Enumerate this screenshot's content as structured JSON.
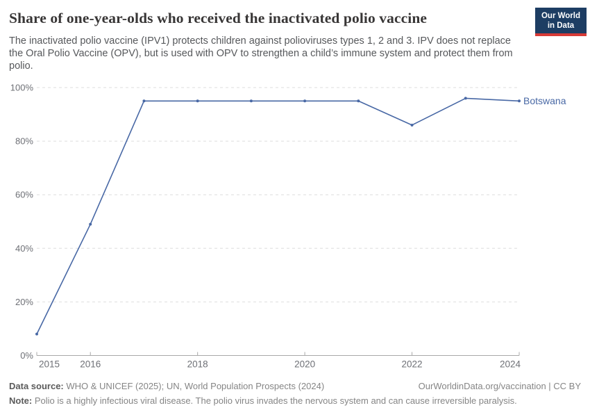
{
  "header": {
    "title": "Share of one-year-olds who received the inactivated polio vaccine",
    "subtitle": "The inactivated polio vaccine (IPV1) protects children against polioviruses types 1, 2 and 3. IPV does not replace the Oral Polio Vaccine (OPV), but is used with OPV to strengthen a child’s immune system and protect them from polio.",
    "logo": {
      "line1": "Our World",
      "line2": "in Data"
    }
  },
  "chart_data": {
    "type": "line",
    "title": "Share of one-year-olds who received the inactivated polio vaccine",
    "x": [
      2015,
      2016,
      2017,
      2018,
      2019,
      2020,
      2021,
      2022,
      2023,
      2024
    ],
    "series": [
      {
        "name": "Botswana",
        "color": "#4868a5",
        "values": [
          8,
          49,
          95,
          95,
          95,
          95,
          95,
          86,
          96,
          95
        ]
      }
    ],
    "xlim": [
      2015,
      2024
    ],
    "ylim": [
      0,
      100
    ],
    "x_tick_labels": [
      2015,
      2016,
      2018,
      2020,
      2022,
      2024
    ],
    "y_ticks": [
      0,
      20,
      40,
      60,
      80,
      100
    ],
    "y_tick_suffix": "%",
    "grid": "horizontal-dashed",
    "legend_position": "end-of-line-label"
  },
  "footer": {
    "source_label": "Data source:",
    "source_text": " WHO & UNICEF (2025); UN, World Population Prospects (2024)",
    "rights": "OurWorldinData.org/vaccination | CC BY",
    "note_label": "Note:",
    "note_text": " Polio is a highly infectious viral disease. The polio virus invades the nervous system and can cause irreversible paralysis."
  },
  "colors": {
    "line": "#4868a5",
    "title": "#383636",
    "subtitle": "#56585b",
    "grid": "#dedede",
    "axis": "#a8a8a8",
    "tick_label": "#6e7076",
    "logo_bg": "#1d3d63",
    "logo_bar": "#d73a36",
    "footer": "#858585"
  }
}
